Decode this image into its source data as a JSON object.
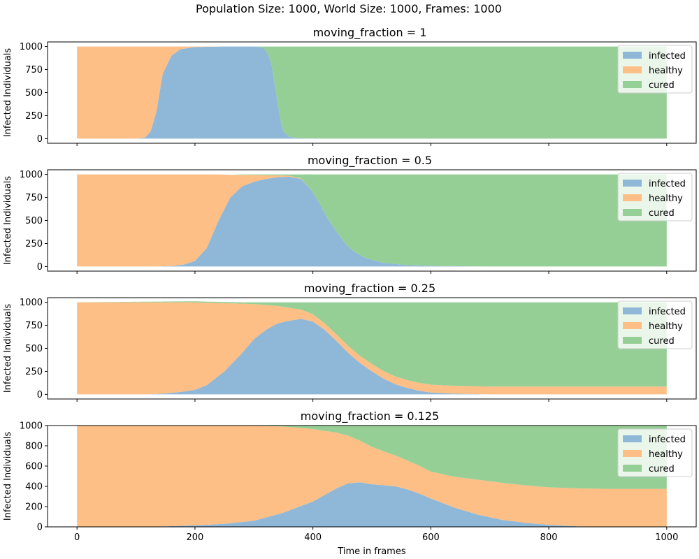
{
  "figure": {
    "suptitle": "Population Size: 1000, World Size: 1000, Frames: 1000",
    "xlabel": "Time in frames",
    "colors": {
      "infected": "#8fb8d8",
      "healthy": "#fdbf86",
      "cured": "#96cf96",
      "axis": "#000000"
    }
  },
  "chart_data": [
    {
      "type": "area",
      "title": "moving_fraction = 1",
      "ylabel": "Infected Individuals",
      "xlim": [
        -50,
        1050
      ],
      "ylim": [
        -50,
        1050
      ],
      "yticks": [
        0,
        250,
        500,
        750,
        1000
      ],
      "xticks": [
        0,
        200,
        400,
        600,
        800,
        1000
      ],
      "show_xticklabels": false,
      "legend": {
        "position": "top-right",
        "entries": [
          "infected",
          "healthy",
          "cured"
        ]
      },
      "series": [
        {
          "name": "infected",
          "x": [
            0,
            100,
            115,
            125,
            135,
            145,
            160,
            175,
            200,
            250,
            300,
            315,
            320,
            325,
            330,
            335,
            340,
            345,
            350,
            360,
            380,
            420,
            1000
          ],
          "y": [
            0,
            0,
            10,
            80,
            300,
            700,
            900,
            970,
            995,
            1000,
            1000,
            990,
            960,
            900,
            800,
            600,
            400,
            200,
            80,
            20,
            3,
            0,
            0
          ]
        },
        {
          "name": "healthy",
          "x": [
            0,
            100,
            115,
            125,
            135,
            145,
            160,
            175,
            200,
            250,
            300,
            1000
          ],
          "y": [
            1000,
            1000,
            990,
            920,
            700,
            300,
            100,
            30,
            5,
            0,
            0,
            0
          ]
        },
        {
          "name": "cured",
          "x": [
            0,
            300,
            315,
            320,
            325,
            330,
            335,
            340,
            345,
            350,
            360,
            380,
            420,
            1000
          ],
          "y": [
            0,
            0,
            10,
            40,
            100,
            200,
            400,
            600,
            800,
            920,
            980,
            997,
            1000,
            1000
          ]
        }
      ]
    },
    {
      "type": "area",
      "title": "moving_fraction = 0.5",
      "ylabel": "Infected Individuals",
      "xlim": [
        -50,
        1050
      ],
      "ylim": [
        -50,
        1050
      ],
      "yticks": [
        0,
        250,
        500,
        750,
        1000
      ],
      "xticks": [
        0,
        200,
        400,
        600,
        800,
        1000
      ],
      "show_xticklabels": false,
      "legend": {
        "position": "top-right",
        "entries": [
          "infected",
          "healthy",
          "cured"
        ]
      },
      "series": [
        {
          "name": "infected",
          "x": [
            0,
            130,
            160,
            180,
            200,
            220,
            240,
            260,
            280,
            300,
            320,
            340,
            360,
            380,
            395,
            410,
            425,
            440,
            455,
            470,
            490,
            520,
            560,
            620,
            700,
            1000
          ],
          "y": [
            0,
            0,
            5,
            20,
            60,
            200,
            500,
            750,
            870,
            920,
            950,
            970,
            975,
            950,
            850,
            700,
            520,
            380,
            250,
            160,
            90,
            40,
            15,
            5,
            0,
            0
          ]
        },
        {
          "name": "healthy",
          "x": [
            0,
            130,
            160,
            180,
            200,
            220,
            240,
            260,
            280,
            300,
            320,
            340,
            360,
            380,
            400,
            1000
          ],
          "y": [
            1000,
            1000,
            995,
            980,
            940,
            800,
            500,
            245,
            125,
            75,
            40,
            20,
            10,
            5,
            0,
            0
          ]
        },
        {
          "name": "cured",
          "x": [
            0,
            260,
            280,
            300,
            320,
            340,
            360,
            380,
            395,
            410,
            425,
            440,
            455,
            470,
            490,
            520,
            560,
            620,
            700,
            1000
          ],
          "y": [
            0,
            0,
            5,
            5,
            10,
            10,
            15,
            45,
            150,
            300,
            480,
            620,
            750,
            840,
            910,
            960,
            985,
            995,
            1000,
            1000
          ]
        }
      ]
    },
    {
      "type": "area",
      "title": "moving_fraction = 0.25",
      "ylabel": "Infected Individuals",
      "xlim": [
        -50,
        1050
      ],
      "ylim": [
        -50,
        1050
      ],
      "yticks": [
        0,
        250,
        500,
        750,
        1000
      ],
      "xticks": [
        0,
        200,
        400,
        600,
        800,
        1000
      ],
      "show_xticklabels": false,
      "legend": {
        "position": "top-right",
        "entries": [
          "infected",
          "healthy",
          "cured"
        ]
      },
      "series": [
        {
          "name": "infected",
          "x": [
            0,
            120,
            150,
            180,
            200,
            220,
            250,
            280,
            300,
            320,
            340,
            360,
            380,
            400,
            420,
            440,
            460,
            480,
            500,
            520,
            540,
            560,
            580,
            600,
            640,
            700,
            1000
          ],
          "y": [
            0,
            0,
            10,
            30,
            50,
            100,
            250,
            450,
            600,
            700,
            770,
            800,
            820,
            790,
            700,
            580,
            450,
            340,
            250,
            170,
            110,
            70,
            40,
            20,
            8,
            0,
            0
          ]
        },
        {
          "name": "healthy",
          "x": [
            0,
            120,
            150,
            180,
            200,
            220,
            250,
            280,
            300,
            320,
            340,
            360,
            380,
            400,
            420,
            440,
            460,
            480,
            500,
            520,
            540,
            560,
            580,
            600,
            640,
            700,
            1000
          ],
          "y": [
            1000,
            1000,
            990,
            970,
            950,
            895,
            740,
            535,
            380,
            270,
            190,
            140,
            100,
            80,
            70,
            70,
            75,
            77,
            80,
            82,
            84,
            85,
            85,
            85,
            85,
            85,
            85
          ]
        },
        {
          "name": "cured",
          "x": [
            0,
            280,
            300,
            320,
            340,
            360,
            380,
            400,
            420,
            440,
            460,
            480,
            500,
            520,
            540,
            560,
            580,
            600,
            640,
            700,
            1000
          ],
          "y": [
            0,
            15,
            20,
            30,
            40,
            60,
            80,
            130,
            230,
            350,
            475,
            583,
            670,
            748,
            806,
            845,
            875,
            895,
            907,
            915,
            915
          ]
        }
      ]
    },
    {
      "type": "area",
      "title": "moving_fraction = 0.125",
      "ylabel": "Infected Individuals",
      "xlabel": "Time in frames",
      "xlim": [
        -50,
        1050
      ],
      "ylim": [
        0,
        1000
      ],
      "yticks": [
        0,
        200,
        400,
        600,
        800,
        1000
      ],
      "xticks": [
        0,
        200,
        400,
        600,
        800,
        1000
      ],
      "show_xticklabels": true,
      "legend": {
        "position": "top-right",
        "entries": [
          "infected",
          "healthy",
          "cured"
        ]
      },
      "series": [
        {
          "name": "infected",
          "x": [
            0,
            100,
            150,
            200,
            250,
            300,
            350,
            400,
            440,
            460,
            480,
            500,
            520,
            540,
            560,
            580,
            600,
            640,
            680,
            720,
            760,
            800,
            850,
            900,
            1000
          ],
          "y": [
            0,
            0,
            5,
            15,
            30,
            60,
            140,
            250,
            380,
            430,
            440,
            420,
            410,
            400,
            370,
            330,
            280,
            190,
            120,
            70,
            40,
            20,
            5,
            0,
            0
          ]
        },
        {
          "name": "healthy",
          "x": [
            0,
            100,
            150,
            200,
            250,
            300,
            350,
            400,
            440,
            460,
            480,
            500,
            520,
            540,
            560,
            580,
            600,
            640,
            680,
            720,
            760,
            800,
            850,
            900,
            1000
          ],
          "y": [
            1000,
            1000,
            995,
            985,
            970,
            938,
            850,
            715,
            550,
            470,
            410,
            370,
            335,
            305,
            285,
            275,
            265,
            305,
            345,
            365,
            370,
            370,
            375,
            375,
            375
          ]
        },
        {
          "name": "cured",
          "x": [
            0,
            300,
            350,
            400,
            440,
            460,
            480,
            500,
            520,
            540,
            560,
            580,
            600,
            640,
            680,
            720,
            760,
            800,
            850,
            900,
            1000
          ],
          "y": [
            0,
            2,
            10,
            35,
            70,
            100,
            150,
            210,
            255,
            295,
            345,
            395,
            455,
            505,
            535,
            565,
            590,
            610,
            620,
            625,
            625
          ]
        }
      ]
    }
  ]
}
